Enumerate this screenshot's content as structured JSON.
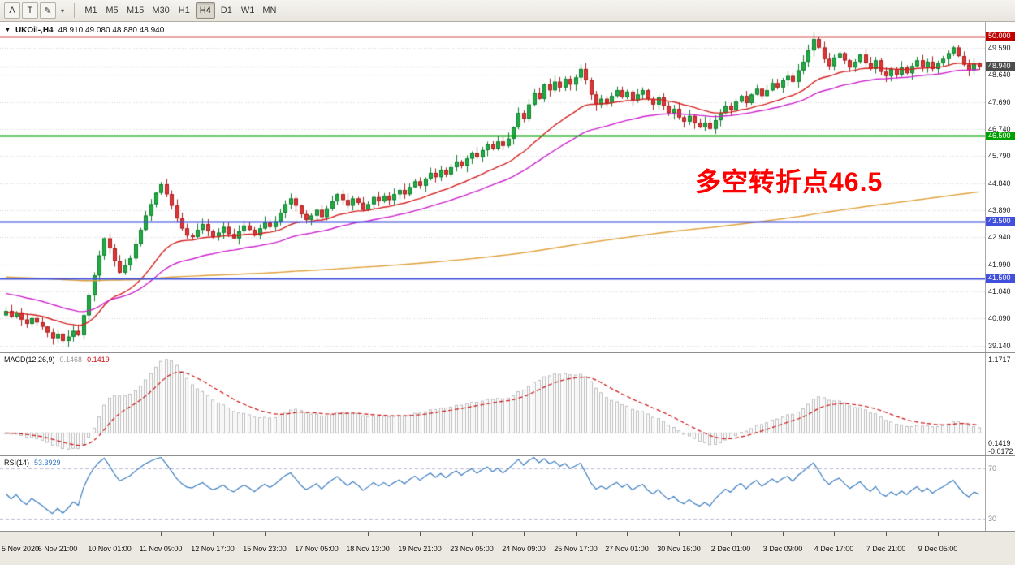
{
  "toolbar": {
    "left_buttons": [
      {
        "name": "annotate-a-button",
        "label": "A"
      },
      {
        "name": "text-t-button",
        "label": "T"
      },
      {
        "name": "draw-tool-button",
        "label": "✎"
      },
      {
        "name": "draw-dropdown-button",
        "label": "▾",
        "caret": true
      }
    ],
    "timeframes": [
      "M1",
      "M5",
      "M15",
      "M30",
      "H1",
      "H4",
      "D1",
      "W1",
      "MN"
    ],
    "active_timeframe": "H4"
  },
  "chart_data": {
    "type": "candlestick",
    "menu_icon": "▼",
    "title_symbol": "UKOil-,H4",
    "ohlc_text": "48.910 49.080 48.880 48.940",
    "open": "48.910",
    "high": "49.080",
    "low": "48.880",
    "close": "48.940",
    "annotation_text": "多空转折点46.5",
    "annotation_color": "#ff0000",
    "y_domain": [
      38.9,
      50.5
    ],
    "current_price": 48.94,
    "bid_line_color": "#b5b5b5",
    "price_axis_labels": [
      "49.590",
      "48.640",
      "47.690",
      "46.740",
      "45.790",
      "44.840",
      "43.890",
      "42.940",
      "41.990",
      "41.040",
      "40.090",
      "39.140"
    ],
    "price_badges": [
      {
        "value": "50.000",
        "price": 50.0,
        "color": "#c00000",
        "name": "resistance-50-badge"
      },
      {
        "value": "48.940",
        "price": 48.94,
        "color": "#4d4d4d",
        "name": "current-price-badge"
      },
      {
        "value": "46.500",
        "price": 46.5,
        "color": "#00a000",
        "name": "pivot-46-5-badge"
      },
      {
        "value": "43.500",
        "price": 43.5,
        "color": "#4050dd",
        "name": "support-43-5-badge"
      },
      {
        "value": "41.500",
        "price": 41.5,
        "color": "#4050dd",
        "name": "support-41-5-badge"
      }
    ],
    "hlines": [
      {
        "price": 50.0,
        "color": "#c00000",
        "width": 1.5
      },
      {
        "price": 46.5,
        "color": "#00a000",
        "width": 2
      },
      {
        "price": 43.5,
        "color": "#4050dd",
        "width": 2
      },
      {
        "price": 41.5,
        "color": "#4050dd",
        "width": 2
      }
    ],
    "candles": {
      "first_open": 40.2,
      "up_color": "#21ad44",
      "up_border": "#0f7d2f",
      "down_color": "#e03636",
      "down_border": "#a81f1f",
      "closes": [
        40.35,
        40.15,
        40.3,
        40.05,
        39.9,
        40.1,
        39.95,
        39.8,
        39.6,
        39.4,
        39.55,
        39.3,
        39.45,
        39.65,
        39.5,
        40.2,
        40.9,
        41.6,
        42.3,
        42.9,
        42.55,
        42.1,
        41.7,
        41.95,
        42.2,
        42.7,
        43.2,
        43.7,
        44.1,
        44.5,
        44.8,
        44.45,
        44.05,
        43.6,
        43.25,
        43.0,
        42.95,
        43.2,
        43.4,
        43.15,
        42.95,
        43.1,
        43.3,
        43.05,
        42.9,
        43.15,
        43.35,
        43.2,
        43.0,
        43.25,
        43.45,
        43.3,
        43.5,
        43.8,
        44.1,
        44.3,
        44.05,
        43.75,
        43.55,
        43.7,
        43.9,
        43.65,
        43.95,
        44.2,
        44.45,
        44.25,
        44.05,
        44.3,
        44.15,
        43.9,
        44.1,
        44.35,
        44.2,
        44.4,
        44.25,
        44.45,
        44.6,
        44.45,
        44.7,
        44.9,
        44.75,
        45.0,
        45.2,
        45.05,
        45.3,
        45.15,
        45.4,
        45.6,
        45.45,
        45.7,
        45.9,
        45.75,
        46.0,
        46.2,
        46.05,
        46.3,
        46.15,
        46.4,
        46.8,
        47.3,
        47.1,
        47.6,
        48.0,
        47.8,
        48.3,
        48.1,
        48.4,
        48.2,
        48.5,
        48.3,
        48.55,
        48.85,
        48.45,
        47.95,
        47.6,
        47.8,
        47.65,
        47.9,
        48.1,
        47.85,
        48.05,
        47.75,
        47.95,
        48.1,
        47.8,
        47.6,
        47.85,
        47.55,
        47.3,
        47.45,
        47.15,
        47.0,
        47.2,
        46.95,
        46.8,
        46.95,
        46.75,
        47.05,
        47.3,
        47.55,
        47.4,
        47.7,
        47.9,
        47.65,
        47.95,
        48.15,
        47.9,
        48.1,
        48.35,
        48.2,
        48.45,
        48.6,
        48.4,
        48.8,
        49.1,
        49.5,
        49.9,
        49.6,
        49.2,
        48.95,
        49.25,
        49.4,
        49.15,
        48.9,
        49.1,
        49.35,
        49.05,
        48.85,
        49.15,
        48.75,
        48.6,
        48.85,
        48.65,
        48.9,
        48.7,
        48.95,
        49.15,
        48.9,
        49.1,
        48.85,
        49.05,
        49.2,
        49.4,
        49.6,
        49.3,
        49.0,
        48.8,
        49.05,
        48.94
      ]
    },
    "moving_averages": [
      {
        "name": "fast-ma",
        "period": 21,
        "seed": 40.3,
        "color": "#d42020"
      },
      {
        "name": "mid-ma",
        "period": 40,
        "seed": 41.0,
        "color": "#cc22cc"
      },
      {
        "name": "slow-ma",
        "period": 400,
        "seed": 41.55,
        "color": "#dfa13a"
      }
    ],
    "time_axis": [
      {
        "bar": 0,
        "label": "5 Nov 2020"
      },
      {
        "bar": 10,
        "label": "6 Nov 21:00"
      },
      {
        "bar": 20,
        "label": "10 Nov 01:00"
      },
      {
        "bar": 30,
        "label": "11 Nov 09:00"
      },
      {
        "bar": 40,
        "label": "12 Nov 17:00"
      },
      {
        "bar": 50,
        "label": "15 Nov 23:00"
      },
      {
        "bar": 60,
        "label": "17 Nov 05:00"
      },
      {
        "bar": 70,
        "label": "18 Nov 13:00"
      },
      {
        "bar": 80,
        "label": "19 Nov 21:00"
      },
      {
        "bar": 90,
        "label": "23 Nov 05:00"
      },
      {
        "bar": 100,
        "label": "24 Nov 09:00"
      },
      {
        "bar": 110,
        "label": "25 Nov 17:00"
      },
      {
        "bar": 120,
        "label": "27 Nov 01:00"
      },
      {
        "bar": 130,
        "label": "30 Nov 16:00"
      },
      {
        "bar": 140,
        "label": "2 Dec 01:00"
      },
      {
        "bar": 150,
        "label": "3 Dec 09:00"
      },
      {
        "bar": 160,
        "label": "4 Dec 17:00"
      },
      {
        "bar": 170,
        "label": "7 Dec 21:00"
      },
      {
        "bar": 180,
        "label": "9 Dec 05:00"
      }
    ],
    "macd": {
      "label": "MACD(12,26,9)",
      "params": [
        12,
        26,
        9
      ],
      "value": "0.1468",
      "signal_value": "0.1419",
      "axis_labels": [
        "1.1717",
        "0.1419",
        "-0.0172"
      ],
      "hist_color": "#bdbdbd",
      "signal_color": "#cc1111"
    },
    "rsi": {
      "label": "RSI(14)",
      "period": 14,
      "value": "53.3929",
      "levels": [
        "70",
        "30"
      ],
      "level_values": [
        70,
        30
      ],
      "color": "#3a7bbf",
      "y_domain": [
        20,
        80
      ]
    }
  }
}
